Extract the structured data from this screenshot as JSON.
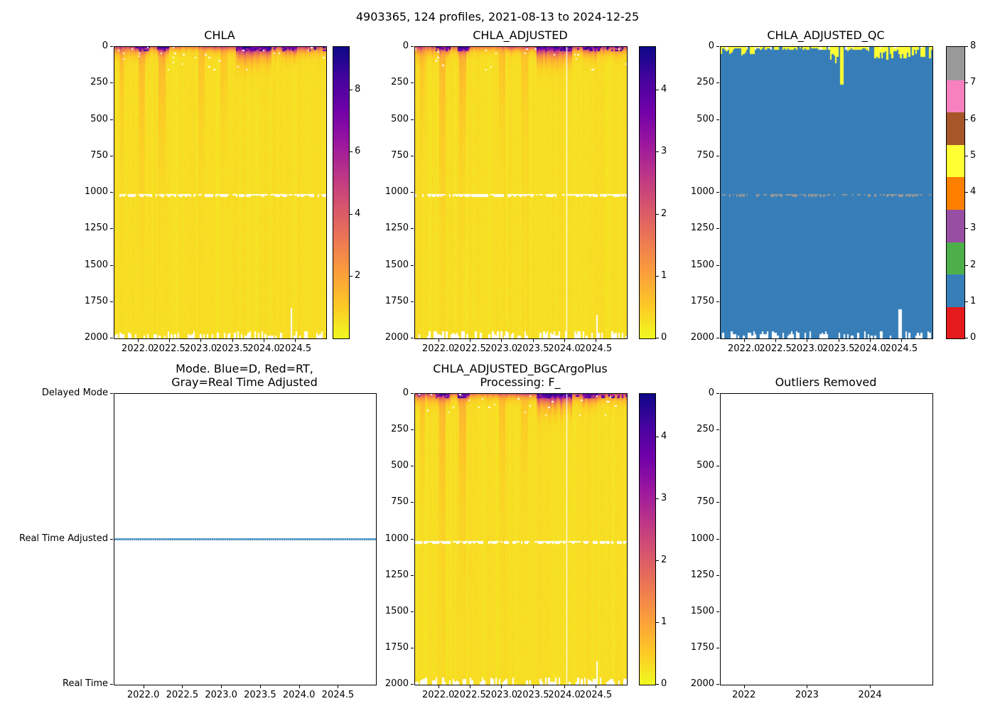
{
  "figure_title": "4903365, 124 profiles, 2021-08-13 to 2024-12-25",
  "colors": {
    "plasma_r_colormap_dark_to_yellow": [
      "#0d0887",
      "#46039f",
      "#7201a8",
      "#9c179e",
      "#bd3786",
      "#d8576b",
      "#ed7953",
      "#fb9f3a",
      "#fdc926",
      "#f0f921"
    ],
    "qc_palette_0_to_8": [
      "#e41a1c",
      "#377eb8",
      "#4daf4a",
      "#984ea3",
      "#ff7f00",
      "#ffff33",
      "#a65628",
      "#f781bf",
      "#999999"
    ],
    "mode_dot": "#1f77b4",
    "axis": "#000000",
    "background": "#ffffff"
  },
  "chart_data": [
    {
      "id": "chla",
      "type": "heatmap",
      "title": "CHLA",
      "n_profiles": 124,
      "x": {
        "range": [
          2021.62,
          2024.98
        ],
        "ticks": [
          2022.0,
          2022.5,
          2023.0,
          2023.5,
          2024.0,
          2024.5
        ],
        "tick_labels": [
          "2022.0",
          "2022.5",
          "2023.0",
          "2023.5",
          "2024.0",
          "2024.5"
        ]
      },
      "y": {
        "range": [
          0,
          2000
        ],
        "ticks": [
          0,
          250,
          500,
          750,
          1000,
          1250,
          1500,
          1750,
          2000
        ],
        "tick_labels": [
          "0",
          "250",
          "500",
          "750",
          "1000",
          "1250",
          "1500",
          "1750",
          "2000"
        ]
      },
      "colorbar": {
        "kind": "continuous",
        "vmin": 0,
        "vmax": 9.4,
        "ticks": [
          2,
          4,
          6,
          8
        ],
        "tick_labels": [
          "2",
          "4",
          "6",
          "8"
        ]
      },
      "features": {
        "background_value_frac": 0.045,
        "surface_blooms": [
          {
            "t0": 2021.62,
            "t1": 2021.95,
            "amp": 0.42,
            "tau": 30
          },
          {
            "t0": 2021.95,
            "t1": 2022.18,
            "amp": 0.75,
            "tau": 25
          },
          {
            "t0": 2022.18,
            "t1": 2022.3,
            "amp": 0.35,
            "tau": 20
          },
          {
            "t0": 2022.3,
            "t1": 2022.5,
            "amp": 0.88,
            "tau": 22
          },
          {
            "t0": 2022.5,
            "t1": 2023.05,
            "amp": 0.3,
            "tau": 18
          },
          {
            "t0": 2023.05,
            "t1": 2023.55,
            "amp": 0.42,
            "tau": 20
          },
          {
            "t0": 2023.55,
            "t1": 2024.1,
            "amp": 0.92,
            "tau": 45
          },
          {
            "t0": 2024.1,
            "t1": 2024.28,
            "amp": 0.5,
            "tau": 25
          },
          {
            "t0": 2024.28,
            "t1": 2024.52,
            "amp": 0.85,
            "tau": 30
          },
          {
            "t0": 2024.52,
            "t1": 2024.98,
            "amp": 0.55,
            "tau": 25
          }
        ],
        "deep_plumes": [
          {
            "t": 2021.75,
            "depth": 400,
            "amp": 0.08
          },
          {
            "t": 2022.05,
            "depth": 650,
            "amp": 0.1
          },
          {
            "t": 2022.38,
            "depth": 500,
            "amp": 0.12
          },
          {
            "t": 2023.0,
            "depth": 420,
            "amp": 0.08
          },
          {
            "t": 2023.35,
            "depth": 380,
            "amp": 0.07
          }
        ],
        "missing_line_depth": 1010,
        "bottom_missing_ticks": true,
        "tall_missing_tick": {
          "t": 2024.4,
          "from_depth": 1790
        }
      }
    },
    {
      "id": "chla_adjusted",
      "type": "heatmap",
      "title": "CHLA_ADJUSTED",
      "n_profiles": 124,
      "x": {
        "range": [
          2021.62,
          2024.98
        ],
        "ticks": [
          2022.0,
          2022.5,
          2023.0,
          2023.5,
          2024.0,
          2024.5
        ],
        "tick_labels": [
          "2022.0",
          "2022.5",
          "2023.0",
          "2023.5",
          "2024.0",
          "2024.5"
        ]
      },
      "y": {
        "range": [
          0,
          2000
        ],
        "ticks": [
          0,
          250,
          500,
          750,
          1000,
          1250,
          1500,
          1750,
          2000
        ],
        "tick_labels": [
          "0",
          "250",
          "500",
          "750",
          "1000",
          "1250",
          "1500",
          "1750",
          "2000"
        ]
      },
      "colorbar": {
        "kind": "continuous",
        "vmin": 0,
        "vmax": 4.7,
        "ticks": [
          0,
          1,
          2,
          3,
          4
        ],
        "tick_labels": [
          "0",
          "1",
          "2",
          "3",
          "4"
        ]
      },
      "features": {
        "background_value_frac": 0.045,
        "surface_blooms": [
          {
            "t0": 2021.62,
            "t1": 2021.95,
            "amp": 0.42,
            "tau": 30
          },
          {
            "t0": 2021.95,
            "t1": 2022.18,
            "amp": 0.75,
            "tau": 25
          },
          {
            "t0": 2022.18,
            "t1": 2022.3,
            "amp": 0.35,
            "tau": 20
          },
          {
            "t0": 2022.3,
            "t1": 2022.5,
            "amp": 0.88,
            "tau": 22
          },
          {
            "t0": 2022.5,
            "t1": 2023.05,
            "amp": 0.3,
            "tau": 18
          },
          {
            "t0": 2023.05,
            "t1": 2023.55,
            "amp": 0.42,
            "tau": 20
          },
          {
            "t0": 2023.55,
            "t1": 2024.1,
            "amp": 0.92,
            "tau": 45
          },
          {
            "t0": 2024.1,
            "t1": 2024.28,
            "amp": 0.5,
            "tau": 25
          },
          {
            "t0": 2024.28,
            "t1": 2024.52,
            "amp": 0.85,
            "tau": 30
          },
          {
            "t0": 2024.52,
            "t1": 2024.98,
            "amp": 0.55,
            "tau": 25
          }
        ],
        "deep_plumes": [
          {
            "t": 2021.75,
            "depth": 400,
            "amp": 0.08
          },
          {
            "t": 2022.05,
            "depth": 650,
            "amp": 0.1
          },
          {
            "t": 2022.38,
            "depth": 500,
            "amp": 0.12
          },
          {
            "t": 2023.0,
            "depth": 420,
            "amp": 0.08
          },
          {
            "t": 2023.35,
            "depth": 380,
            "amp": 0.07
          }
        ],
        "missing_line_depth": 1010,
        "bottom_missing_ticks": true,
        "vertical_missing_line_t": 2024.02,
        "tall_missing_tick": {
          "t": 2024.5,
          "from_depth": 1840
        }
      }
    },
    {
      "id": "qc",
      "type": "categorical-heatmap",
      "title": "CHLA_ADJUSTED_QC",
      "n_profiles": 124,
      "base_value": 1,
      "x": {
        "range": [
          2021.62,
          2024.98
        ],
        "ticks": [
          2022.0,
          2022.5,
          2023.0,
          2023.5,
          2024.0,
          2024.5
        ],
        "tick_labels": [
          "2022.0",
          "2022.5",
          "2023.0",
          "2023.5",
          "2024.0",
          "2024.5"
        ]
      },
      "y": {
        "range": [
          0,
          2000
        ],
        "ticks": [
          0,
          250,
          500,
          750,
          1000,
          1250,
          1500,
          1750,
          2000
        ],
        "tick_labels": [
          "0",
          "250",
          "500",
          "750",
          "1000",
          "1250",
          "1500",
          "1750",
          "2000"
        ]
      },
      "colorbar": {
        "kind": "discrete",
        "ticks": [
          0,
          1,
          2,
          3,
          4,
          5,
          6,
          7,
          8
        ],
        "tick_labels": [
          "0",
          "1",
          "2",
          "3",
          "4",
          "5",
          "6",
          "7",
          "8"
        ]
      },
      "features": {
        "surface_yellow_value": 5,
        "yellow_periods": [
          {
            "t0": 2021.62,
            "t1": 2021.8,
            "d": 45
          },
          {
            "t0": 2021.8,
            "t1": 2021.95,
            "d": 15
          },
          {
            "t0": 2021.95,
            "t1": 2022.15,
            "d": 50
          },
          {
            "t0": 2022.15,
            "t1": 2023.35,
            "d": 18
          },
          {
            "t0": 2023.35,
            "t1": 2023.6,
            "d": 90
          },
          {
            "t0": 2023.6,
            "t1": 2024.05,
            "d": 25
          },
          {
            "t0": 2024.05,
            "t1": 2024.35,
            "d": 70
          },
          {
            "t0": 2024.35,
            "t1": 2024.98,
            "d": 65
          }
        ],
        "deep_yellow_spike": {
          "t": 2023.55,
          "depth": 255
        },
        "gray_line_depth": 1010,
        "gray_value": 8,
        "bottom_missing_ticks": true,
        "tall_missing_tick": {
          "t": 2024.45,
          "from_depth": 1800,
          "cols": 2
        }
      }
    },
    {
      "id": "mode",
      "type": "categorical-scatter",
      "title_lines": [
        "Mode. Blue=D, Red=RT,",
        "Gray=Real Time Adjusted"
      ],
      "x": {
        "range": [
          2021.62,
          2024.98
        ],
        "ticks": [
          2022.0,
          2022.5,
          2023.0,
          2023.5,
          2024.0,
          2024.5
        ],
        "tick_labels": [
          "2022.0",
          "2022.5",
          "2023.0",
          "2023.5",
          "2024.0",
          "2024.5"
        ]
      },
      "y_categories": [
        "Delayed Mode",
        "Real Time Adjusted",
        "Real Time"
      ],
      "series": {
        "all_profiles_value": "Real Time Adjusted",
        "count": 124
      }
    },
    {
      "id": "bgcargoplus",
      "type": "heatmap",
      "title_lines": [
        "CHLA_ADJUSTED_BGCArgoPlus",
        "Processing: F_"
      ],
      "n_profiles": 124,
      "x": {
        "range": [
          2021.62,
          2024.98
        ],
        "ticks": [
          2022.0,
          2022.5,
          2023.0,
          2023.5,
          2024.0,
          2024.5
        ],
        "tick_labels": [
          "2022.0",
          "2022.5",
          "2023.0",
          "2023.5",
          "2024.0",
          "2024.5"
        ]
      },
      "y": {
        "range": [
          0,
          2000
        ],
        "ticks": [
          0,
          250,
          500,
          750,
          1000,
          1250,
          1500,
          1750,
          2000
        ],
        "tick_labels": [
          "0",
          "250",
          "500",
          "750",
          "1000",
          "1250",
          "1500",
          "1750",
          "2000"
        ]
      },
      "colorbar": {
        "kind": "continuous",
        "vmin": 0,
        "vmax": 4.7,
        "ticks": [
          0,
          1,
          2,
          3,
          4
        ],
        "tick_labels": [
          "0",
          "1",
          "2",
          "3",
          "4"
        ]
      },
      "features": {
        "background_value_frac": 0.045,
        "surface_blooms": [
          {
            "t0": 2021.62,
            "t1": 2021.95,
            "amp": 0.45,
            "tau": 30
          },
          {
            "t0": 2021.95,
            "t1": 2022.18,
            "amp": 0.75,
            "tau": 25
          },
          {
            "t0": 2022.18,
            "t1": 2022.3,
            "amp": 0.38,
            "tau": 20
          },
          {
            "t0": 2022.3,
            "t1": 2022.5,
            "amp": 0.88,
            "tau": 22
          },
          {
            "t0": 2022.5,
            "t1": 2023.05,
            "amp": 0.32,
            "tau": 18
          },
          {
            "t0": 2023.05,
            "t1": 2023.55,
            "amp": 0.45,
            "tau": 20
          },
          {
            "t0": 2023.55,
            "t1": 2024.1,
            "amp": 0.92,
            "tau": 45
          },
          {
            "t0": 2024.1,
            "t1": 2024.28,
            "amp": 0.52,
            "tau": 25
          },
          {
            "t0": 2024.28,
            "t1": 2024.52,
            "amp": 0.85,
            "tau": 30
          },
          {
            "t0": 2024.52,
            "t1": 2024.98,
            "amp": 0.58,
            "tau": 25
          }
        ],
        "deep_plumes": [
          {
            "t": 2021.75,
            "depth": 400,
            "amp": 0.08
          },
          {
            "t": 2022.05,
            "depth": 650,
            "amp": 0.1
          },
          {
            "t": 2022.38,
            "depth": 500,
            "amp": 0.12
          },
          {
            "t": 2023.0,
            "depth": 420,
            "amp": 0.08
          },
          {
            "t": 2023.35,
            "depth": 380,
            "amp": 0.07
          }
        ],
        "missing_line_depth": 1010,
        "bottom_missing_ticks": true,
        "vertical_missing_line_t": 2024.02,
        "tall_missing_tick": {
          "t": 2024.5,
          "from_depth": 1840
        }
      }
    },
    {
      "id": "outliers",
      "type": "empty",
      "title": "Outliers Removed",
      "x": {
        "range": [
          2021.62,
          2024.98
        ],
        "ticks": [
          2022,
          2023,
          2024
        ],
        "tick_labels": [
          "2022",
          "2023",
          "2024"
        ]
      },
      "y": {
        "range": [
          0,
          2000
        ],
        "ticks": [
          0,
          250,
          500,
          750,
          1000,
          1250,
          1500,
          1750,
          2000
        ],
        "tick_labels": [
          "0",
          "250",
          "500",
          "750",
          "1000",
          "1250",
          "1500",
          "1750",
          "2000"
        ]
      }
    }
  ]
}
